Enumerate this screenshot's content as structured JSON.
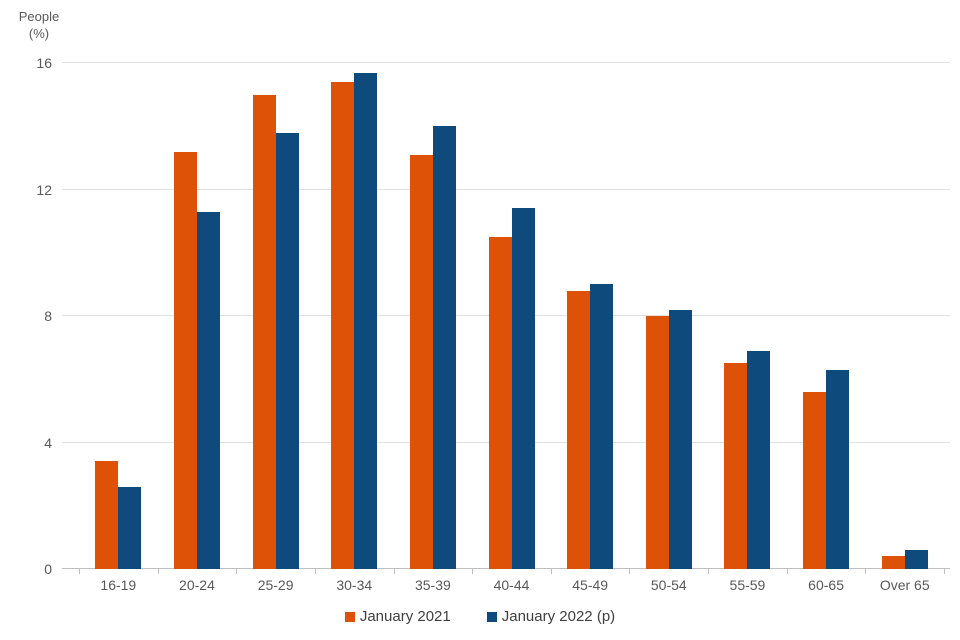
{
  "chart_data": {
    "type": "bar",
    "title": "",
    "ylabel_lines": [
      "People",
      "(%)"
    ],
    "xlabel": "",
    "categories": [
      "16-19",
      "20-24",
      "25-29",
      "30-34",
      "35-39",
      "40-44",
      "45-49",
      "50-54",
      "55-59",
      "60-65",
      "Over 65"
    ],
    "series": [
      {
        "name": "January 2021",
        "color": "#dd5207",
        "values": [
          3.4,
          13.2,
          15.0,
          15.4,
          13.1,
          10.5,
          8.8,
          8.0,
          6.5,
          5.6,
          0.4
        ]
      },
      {
        "name": "January 2022 (p)",
        "color": "#0e4a7b",
        "values": [
          2.6,
          11.3,
          13.8,
          15.7,
          14.0,
          11.4,
          9.0,
          8.2,
          6.9,
          6.3,
          0.6
        ]
      }
    ],
    "ylim": [
      0,
      16
    ],
    "yticks": [
      0,
      4,
      8,
      12,
      16
    ],
    "grid": true,
    "legend_position": "bottom",
    "colors": {
      "axis_text": "#595959",
      "legend_text": "#404040",
      "gridline": "#e2e2e2",
      "axis_line": "#bfbfbf",
      "background": "#ffffff"
    }
  }
}
